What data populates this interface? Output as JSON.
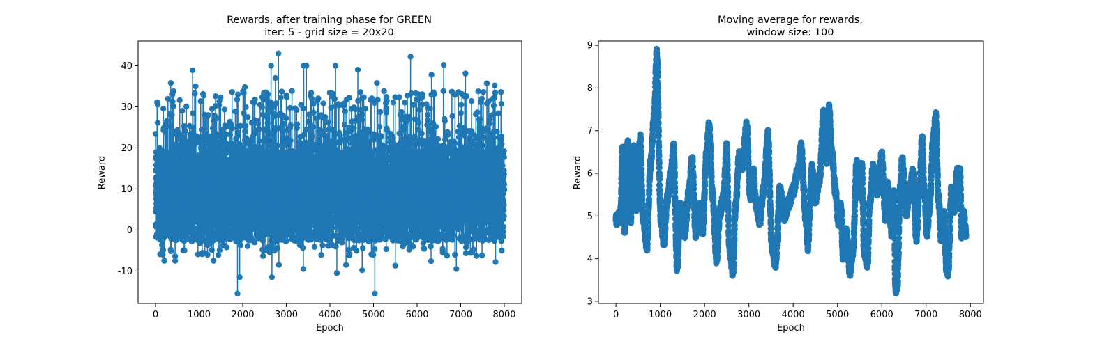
{
  "chart_data": [
    {
      "type": "line",
      "title_line1": "Rewards, after training phase for GREEN",
      "title_line2": "iter: 5 - grid size = 20x20",
      "xlabel": "Epoch",
      "ylabel": "Reward",
      "xlim": [
        -400,
        8400
      ],
      "ylim": [
        -17.9,
        46.0
      ],
      "xticks": [
        "0",
        "1000",
        "2000",
        "3000",
        "4000",
        "5000",
        "6000",
        "7000",
        "8000"
      ],
      "yticks": [
        "-10",
        "0",
        "10",
        "20",
        "30",
        "40"
      ],
      "markers": true,
      "grid": false,
      "series": [
        {
          "color": "#1f77b4",
          "n_points": 8000,
          "typical_range": [
            -2,
            24
          ],
          "mean_approx": 9.5,
          "peaks": [
            [
              50,
              30.5
            ],
            [
              350,
              35.8
            ],
            [
              850,
              38.9
            ],
            [
              920,
              35
            ],
            [
              1400,
              33.9
            ],
            [
              1890,
              33
            ],
            [
              2050,
              34.8
            ],
            [
              2650,
              40
            ],
            [
              2750,
              37
            ],
            [
              2820,
              43
            ],
            [
              3000,
              32.8
            ],
            [
              3400,
              40
            ],
            [
              3460,
              40
            ],
            [
              3800,
              36.8
            ],
            [
              4130,
              40
            ],
            [
              4640,
              39
            ],
            [
              5080,
              35.8
            ],
            [
              5850,
              42.2
            ],
            [
              6330,
              37.8
            ],
            [
              6610,
              40.2
            ],
            [
              7110,
              38.1
            ],
            [
              7600,
              35.7
            ],
            [
              7780,
              35.2
            ]
          ],
          "troughs": [
            [
              200,
              -7.5
            ],
            [
              450,
              -7.5
            ],
            [
              1130,
              -8.5
            ],
            [
              1330,
              -7.5
            ],
            [
              1880,
              -15.5
            ],
            [
              1930,
              -11.5
            ],
            [
              2510,
              -5
            ],
            [
              2670,
              -11.5
            ],
            [
              2830,
              -8.5
            ],
            [
              3390,
              -9.5
            ],
            [
              4160,
              -10.5
            ],
            [
              4370,
              -8.5
            ],
            [
              4740,
              -9.8
            ],
            [
              5030,
              -15.5
            ],
            [
              5500,
              -8.7
            ],
            [
              6320,
              -7.6
            ],
            [
              6900,
              -9.5
            ],
            [
              7800,
              -7.8
            ]
          ]
        }
      ]
    },
    {
      "type": "line",
      "title_line1": "Moving average for rewards,",
      "title_line2": "window size: 100",
      "xlabel": "Epoch",
      "ylabel": "Reward",
      "xlim": [
        -395,
        8295
      ],
      "ylim": [
        2.95,
        9.1
      ],
      "xticks": [
        "0",
        "1000",
        "2000",
        "3000",
        "4000",
        "5000",
        "6000",
        "7000",
        "8000"
      ],
      "yticks": [
        "3",
        "4",
        "5",
        "6",
        "7",
        "8",
        "9"
      ],
      "markers": true,
      "grid": false,
      "series": [
        {
          "color": "#1f77b4",
          "n_points": 7901,
          "keypoints": [
            [
              0,
              4.9
            ],
            [
              100,
              5.0
            ],
            [
              150,
              6.5
            ],
            [
              200,
              4.7
            ],
            [
              260,
              6.7
            ],
            [
              330,
              4.9
            ],
            [
              400,
              6.6
            ],
            [
              470,
              5.2
            ],
            [
              550,
              6.8
            ],
            [
              610,
              5.0
            ],
            [
              700,
              4.3
            ],
            [
              780,
              6.2
            ],
            [
              860,
              7.3
            ],
            [
              920,
              8.8
            ],
            [
              1010,
              5.0
            ],
            [
              1080,
              4.4
            ],
            [
              1160,
              5.4
            ],
            [
              1240,
              6.0
            ],
            [
              1300,
              6.6
            ],
            [
              1380,
              3.8
            ],
            [
              1450,
              5.2
            ],
            [
              1550,
              4.6
            ],
            [
              1650,
              5.6
            ],
            [
              1720,
              6.3
            ],
            [
              1800,
              4.6
            ],
            [
              1880,
              5.2
            ],
            [
              1960,
              4.7
            ],
            [
              2040,
              6.4
            ],
            [
              2100,
              7.1
            ],
            [
              2180,
              5.5
            ],
            [
              2270,
              4.0
            ],
            [
              2350,
              5.1
            ],
            [
              2420,
              5.4
            ],
            [
              2500,
              6.6
            ],
            [
              2560,
              4.3
            ],
            [
              2640,
              3.7
            ],
            [
              2700,
              5.2
            ],
            [
              2780,
              6.4
            ],
            [
              2850,
              6.2
            ],
            [
              2950,
              7.1
            ],
            [
              3030,
              5.5
            ],
            [
              3100,
              6.0
            ],
            [
              3160,
              5.3
            ],
            [
              3250,
              4.9
            ],
            [
              3330,
              5.6
            ],
            [
              3430,
              6.9
            ],
            [
              3520,
              4.3
            ],
            [
              3600,
              3.9
            ],
            [
              3700,
              5.6
            ],
            [
              3800,
              5.0
            ],
            [
              3900,
              5.3
            ],
            [
              4000,
              5.6
            ],
            [
              4100,
              6.0
            ],
            [
              4180,
              6.6
            ],
            [
              4280,
              5.0
            ],
            [
              4330,
              4.3
            ],
            [
              4420,
              6.1
            ],
            [
              4500,
              5.4
            ],
            [
              4600,
              5.9
            ],
            [
              4680,
              7.4
            ],
            [
              4750,
              6.3
            ],
            [
              4810,
              7.5
            ],
            [
              4880,
              6.4
            ],
            [
              4950,
              5.6
            ],
            [
              5020,
              4.9
            ],
            [
              5080,
              5.2
            ],
            [
              5120,
              4.1
            ],
            [
              5200,
              4.6
            ],
            [
              5280,
              3.7
            ],
            [
              5350,
              4.2
            ],
            [
              5430,
              6.2
            ],
            [
              5500,
              5.5
            ],
            [
              5550,
              6.2
            ],
            [
              5600,
              4.2
            ],
            [
              5680,
              3.9
            ],
            [
              5730,
              5.3
            ],
            [
              5800,
              6.1
            ],
            [
              5900,
              5.6
            ],
            [
              6000,
              6.4
            ],
            [
              6080,
              5.0
            ],
            [
              6130,
              5.7
            ],
            [
              6230,
              4.6
            ],
            [
              6270,
              5.5
            ],
            [
              6310,
              3.3
            ],
            [
              6350,
              3.4
            ],
            [
              6420,
              5.7
            ],
            [
              6460,
              6.3
            ],
            [
              6550,
              5.1
            ],
            [
              6620,
              5.5
            ],
            [
              6700,
              6.0
            ],
            [
              6780,
              4.5
            ],
            [
              6850,
              5.6
            ],
            [
              6910,
              6.8
            ],
            [
              6960,
              5.6
            ],
            [
              7020,
              4.6
            ],
            [
              7080,
              5.2
            ],
            [
              7160,
              6.8
            ],
            [
              7220,
              7.3
            ],
            [
              7280,
              5.4
            ],
            [
              7340,
              4.5
            ],
            [
              7400,
              5.0
            ],
            [
              7460,
              3.8
            ],
            [
              7500,
              3.7
            ],
            [
              7570,
              5.6
            ],
            [
              7640,
              5.2
            ],
            [
              7700,
              6.0
            ],
            [
              7770,
              6.0
            ],
            [
              7800,
              4.6
            ],
            [
              7850,
              5.0
            ],
            [
              7900,
              4.6
            ]
          ]
        }
      ]
    }
  ]
}
